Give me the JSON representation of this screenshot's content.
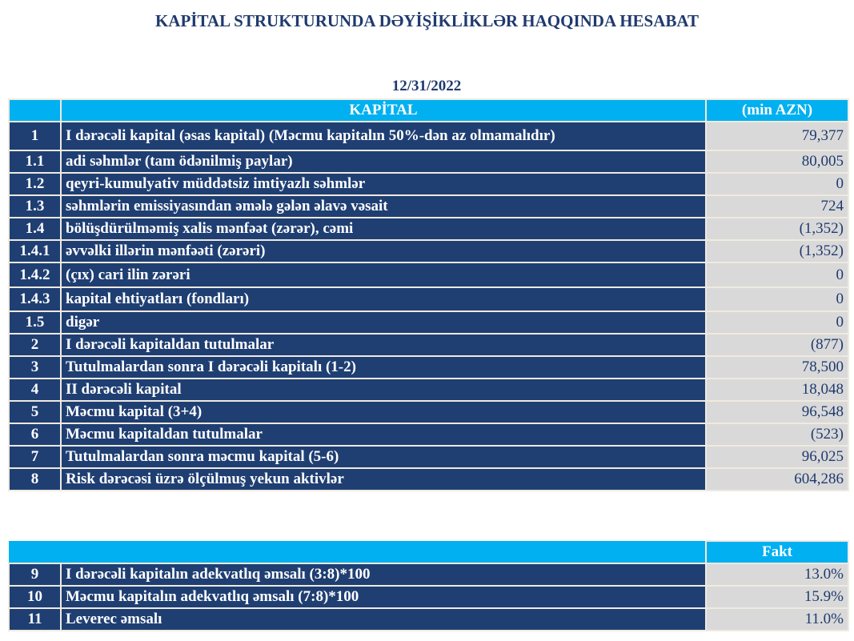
{
  "title": "KAPİTAL STRUKTURUNDA DƏYİŞİKLİKLƏR HAQQINDA HESABAT",
  "date": "12/31/2022",
  "table1": {
    "header": {
      "label": "KAPİTAL",
      "unit": "(min AZN)"
    },
    "rows": [
      {
        "num": "1",
        "label": "I dərəcəli kapital (əsas kapital) (Məcmu kapitalın 50%-dən az olmamalıdır)",
        "value": "79,377"
      },
      {
        "num": "1.1",
        "label": "adi səhmlər (tam ödənilmiş paylar)",
        "value": "80,005"
      },
      {
        "num": "1.2",
        "label": "qeyri-kumulyativ müddətsiz imtiyazlı səhmlər",
        "value": "0"
      },
      {
        "num": "1.3",
        "label": "səhmlərin emissiyasından əmələ gələn  əlavə vəsait",
        "value": "724"
      },
      {
        "num": "1.4",
        "label": "bölüşdürülməmiş xalis mənfəət (zərər), cəmi",
        "value": "(1,352)"
      },
      {
        "num": "1.4.1",
        "label": "əvvəlki illərin mənfəəti (zərəri)",
        "value": "(1,352)"
      },
      {
        "num": "1.4.2",
        "label": "(çıx) cari ilin zərəri",
        "value": "0"
      },
      {
        "num": "1.4.3",
        "label": "kapital ehtiyatları (fondları)",
        "value": "0"
      },
      {
        "num": "1.5",
        "label": "digər",
        "value": "0"
      },
      {
        "num": "2",
        "label": "I dərəcəli kapitaldan  tutulmalar",
        "value": "(877)"
      },
      {
        "num": "3",
        "label": "Tutulmalardan  sonra I dərəcəli kapitalı (1-2)",
        "value": "78,500"
      },
      {
        "num": "4",
        "label": "II dərəcəli  kapital",
        "value": "18,048"
      },
      {
        "num": "5",
        "label": "Məcmu kapital (3+4)",
        "value": "96,548"
      },
      {
        "num": "6",
        "label": "Məcmu kapitaldan tutulmalar",
        "value": "(523)"
      },
      {
        "num": "7",
        "label": "Tutulmalardan  sonra məcmu kapital (5-6)",
        "value": "96,025"
      },
      {
        "num": "8",
        "label": "Risk dərəcəsi üzrə ölçülmuş  yekun aktivlər",
        "value": "604,286"
      }
    ]
  },
  "table2": {
    "header": {
      "value": "Fakt"
    },
    "rows": [
      {
        "num": "9",
        "label": "I dərəcəli  kapitalın  adekvatlıq əmsalı (3:8)*100",
        "value": "13.0%"
      },
      {
        "num": "10",
        "label": "Məcmu kapitalın  adekvatlıq  əmsalı (7:8)*100",
        "value": "15.9%"
      },
      {
        "num": "11",
        "label": "Leverec əmsalı",
        "value": "11.0%"
      }
    ]
  },
  "colors": {
    "navy": "#1f3f73",
    "cyan": "#00b0f0",
    "grey": "#d9d9d9"
  }
}
